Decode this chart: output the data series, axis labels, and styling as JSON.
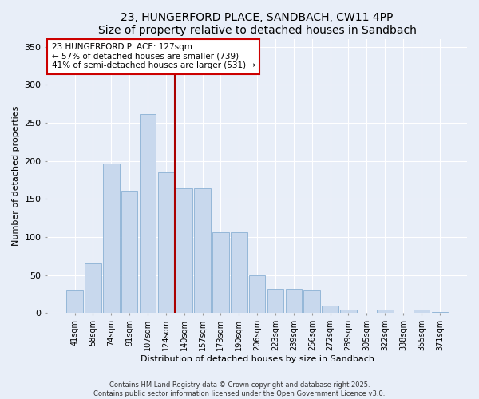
{
  "title": "23, HUNGERFORD PLACE, SANDBACH, CW11 4PP",
  "subtitle": "Size of property relative to detached houses in Sandbach",
  "xlabel": "Distribution of detached houses by size in Sandbach",
  "ylabel": "Number of detached properties",
  "bar_labels": [
    "41sqm",
    "58sqm",
    "74sqm",
    "91sqm",
    "107sqm",
    "124sqm",
    "140sqm",
    "157sqm",
    "173sqm",
    "190sqm",
    "206sqm",
    "223sqm",
    "239sqm",
    "256sqm",
    "272sqm",
    "289sqm",
    "305sqm",
    "322sqm",
    "338sqm",
    "355sqm",
    "371sqm"
  ],
  "bar_values": [
    30,
    65,
    197,
    161,
    262,
    185,
    164,
    164,
    106,
    106,
    50,
    32,
    32,
    30,
    10,
    5,
    0,
    5,
    0,
    5,
    1
  ],
  "bar_color": "#c8d8ed",
  "bar_edge_color": "#8ab0d4",
  "annotation_text_line1": "23 HUNGERFORD PLACE: 127sqm",
  "annotation_text_line2": "← 57% of detached houses are smaller (739)",
  "annotation_text_line3": "41% of semi-detached houses are larger (531) →",
  "vline_color": "#aa0000",
  "annotation_box_facecolor": "#ffffff",
  "annotation_box_edgecolor": "#cc0000",
  "ylim": [
    0,
    360
  ],
  "yticks": [
    0,
    50,
    100,
    150,
    200,
    250,
    300,
    350
  ],
  "background_color": "#e8eef8",
  "footer_line1": "Contains HM Land Registry data © Crown copyright and database right 2025.",
  "footer_line2": "Contains public sector information licensed under the Open Government Licence v3.0.",
  "title_fontsize": 10,
  "axis_label_fontsize": 8,
  "tick_fontsize": 7,
  "annotation_fontsize": 7.5,
  "footer_fontsize": 6
}
